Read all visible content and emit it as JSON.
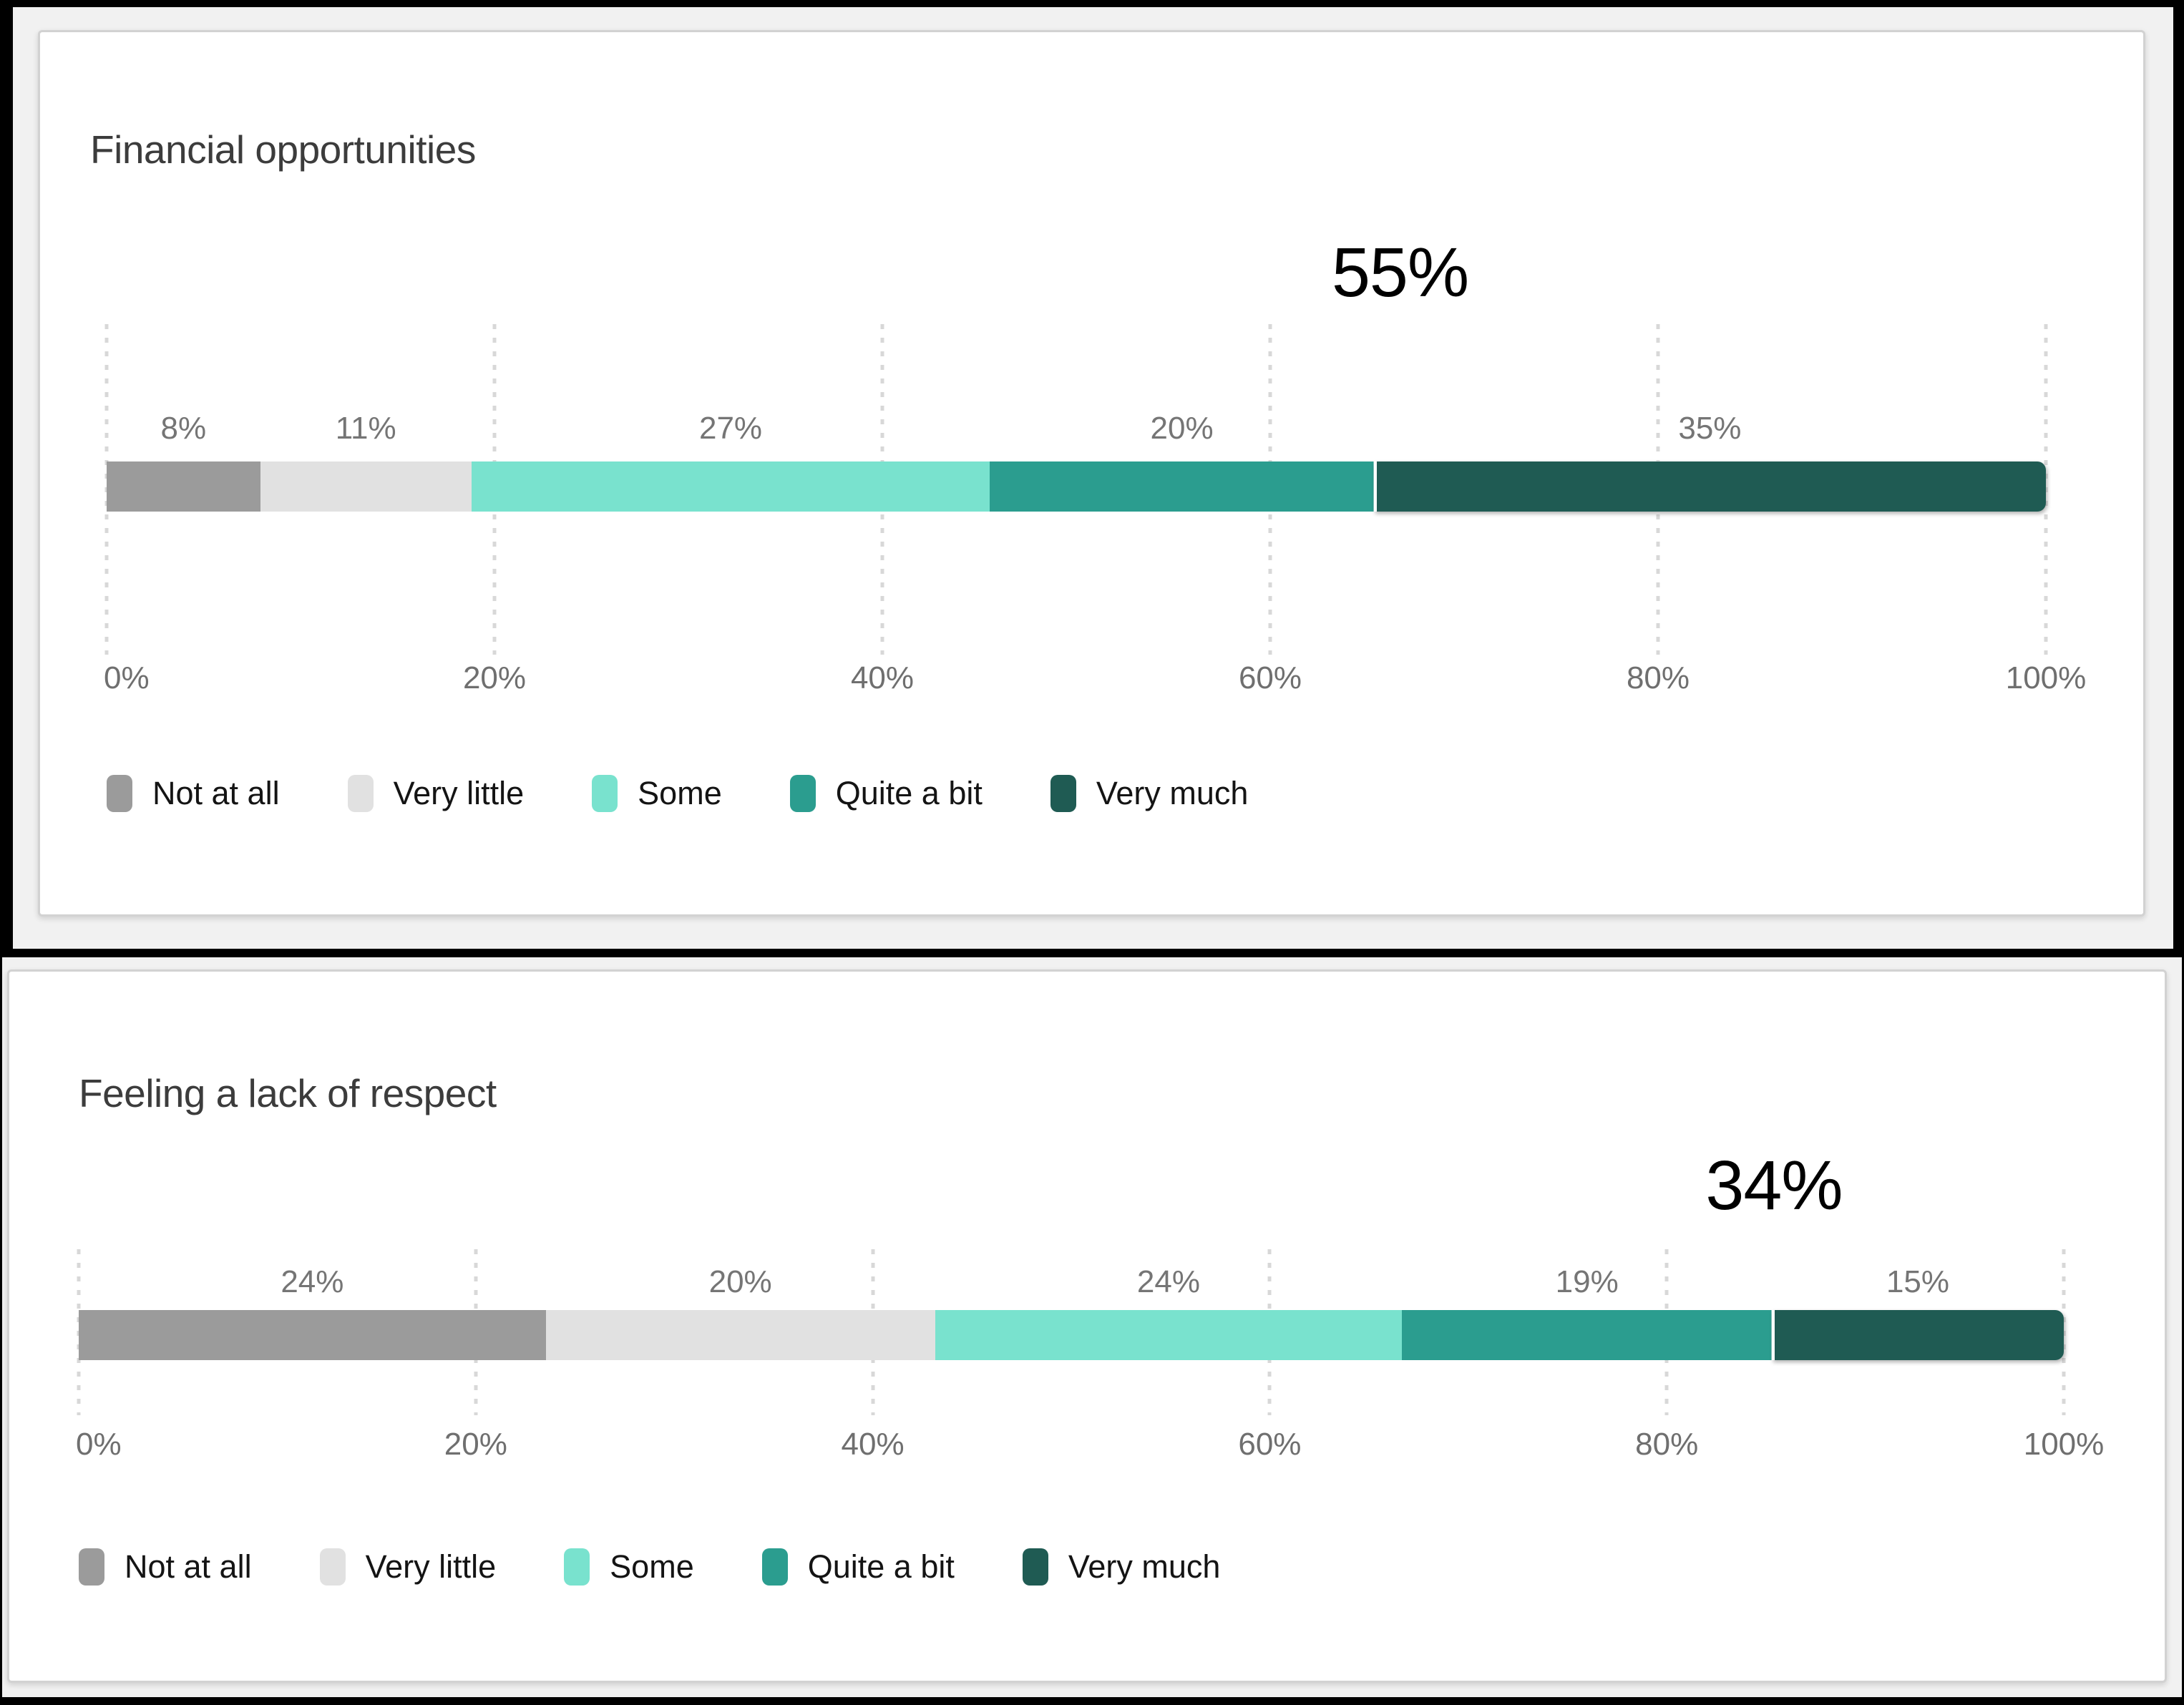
{
  "colors": {
    "series": [
      "#9b9b9b",
      "#e1e1e1",
      "#79e2ce",
      "#2b9d8f",
      "#1f5b53"
    ],
    "grid": "#d8d8d8",
    "bar_label": "#757575",
    "axis_label": "#6f6f6f",
    "title": "#3c3c3c",
    "callout": "#000000",
    "card_background": "#ffffff",
    "page_gutter": "#f1f1f1",
    "frame": "#000000"
  },
  "chart_data": [
    {
      "type": "bar",
      "orientation": "horizontal-stacked",
      "title": "Financial opportunities",
      "callout": {
        "text": "55%",
        "position_pct": 66.7
      },
      "categories": [
        "Not at all",
        "Very little",
        "Some",
        "Quite a bit",
        "Very much"
      ],
      "values": [
        8,
        11,
        27,
        20,
        35
      ],
      "bar_labels": [
        "8%",
        "11%",
        "27%",
        "20%",
        "35%"
      ],
      "unit": "%",
      "x_ticks": [
        "0%",
        "20%",
        "40%",
        "60%",
        "80%",
        "100%"
      ],
      "xlim": [
        0,
        100
      ],
      "grid": "vertical-dotted",
      "legend_position": "bottom",
      "highlight_segment": "Very much"
    },
    {
      "type": "bar",
      "orientation": "horizontal-stacked",
      "title": "Feeling a lack of respect",
      "callout": {
        "text": "34%",
        "position_pct": 85.4
      },
      "categories": [
        "Not at all",
        "Very little",
        "Some",
        "Quite a bit",
        "Very much"
      ],
      "values": [
        24,
        20,
        24,
        19,
        15
      ],
      "bar_labels": [
        "24%",
        "20%",
        "24%",
        "19%",
        "15%"
      ],
      "unit": "%",
      "x_ticks": [
        "0%",
        "20%",
        "40%",
        "60%",
        "80%",
        "100%"
      ],
      "xlim": [
        0,
        100
      ],
      "grid": "vertical-dotted",
      "legend_position": "bottom",
      "highlight_segment": "Very much"
    }
  ]
}
